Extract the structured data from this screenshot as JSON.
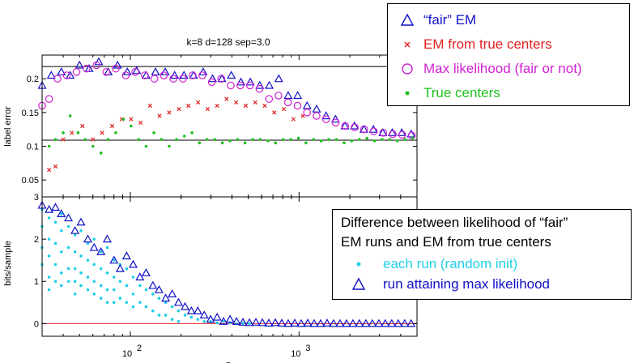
{
  "chart_data": [
    {
      "type": "scatter",
      "title": "k=8 d=128 sep=3.0",
      "xlabel": "",
      "ylabel": "label error",
      "xscale": "log",
      "xlim": [
        30,
        5000
      ],
      "ylim": [
        0.025,
        0.235
      ],
      "yticks": [
        "0.05",
        "0.1",
        "0.15",
        "0.2"
      ],
      "reference_lines_y": [
        0.218,
        0.109
      ],
      "legend_placement": "top-right",
      "series": [
        {
          "name": "“fair” EM",
          "marker": "triangle",
          "color": "#1010c8",
          "x": [
            30,
            34,
            39,
            44,
            50,
            57,
            65,
            74,
            84,
            96,
            109,
            124,
            141,
            161,
            183,
            208,
            237,
            270,
            307,
            349,
            397,
            452,
            514,
            585,
            666,
            758,
            862,
            981,
            1116,
            1270,
            1445,
            1644,
            1871,
            2129,
            2422,
            2756,
            3136,
            3568,
            4060,
            4620
          ],
          "y": [
            0.19,
            0.205,
            0.21,
            0.205,
            0.22,
            0.215,
            0.225,
            0.21,
            0.22,
            0.21,
            0.212,
            0.205,
            0.21,
            0.21,
            0.205,
            0.205,
            0.205,
            0.21,
            0.2,
            0.2,
            0.205,
            0.195,
            0.195,
            0.19,
            0.19,
            0.2,
            0.175,
            0.175,
            0.16,
            0.155,
            0.145,
            0.14,
            0.13,
            0.13,
            0.125,
            0.125,
            0.12,
            0.12,
            0.12,
            0.118
          ]
        },
        {
          "name": "EM from true centers",
          "marker": "x",
          "color": "#e02020",
          "x": [
            33,
            36,
            40,
            45,
            52,
            60,
            68,
            78,
            89,
            101,
            115,
            131,
            149,
            170,
            194,
            221,
            252,
            287,
            327,
            372,
            424,
            483,
            550,
            626,
            713,
            812,
            925,
            1053
          ],
          "y": [
            0.065,
            0.07,
            0.11,
            0.12,
            0.13,
            0.11,
            0.12,
            0.13,
            0.14,
            0.14,
            0.135,
            0.16,
            0.145,
            0.15,
            0.155,
            0.16,
            0.165,
            0.155,
            0.16,
            0.17,
            0.165,
            0.16,
            0.165,
            0.16,
            0.15,
            0.155,
            0.14,
            0.145
          ]
        },
        {
          "name": "Max likelihood (fair or not)",
          "marker": "circle",
          "color": "#d020d0",
          "x": [
            30,
            33,
            37,
            42,
            48,
            55,
            63,
            72,
            82,
            94,
            107,
            122,
            139,
            158,
            180,
            205,
            234,
            267,
            304,
            346,
            394,
            449,
            512,
            583,
            664,
            756,
            860,
            979,
            1115,
            1270,
            1446,
            1647,
            1876,
            2136,
            2432,
            2770,
            3154,
            3592,
            4090,
            4657
          ],
          "y": [
            0.16,
            0.17,
            0.2,
            0.205,
            0.21,
            0.215,
            0.22,
            0.21,
            0.215,
            0.205,
            0.21,
            0.205,
            0.2,
            0.205,
            0.2,
            0.2,
            0.205,
            0.205,
            0.195,
            0.2,
            0.19,
            0.19,
            0.19,
            0.185,
            0.17,
            0.175,
            0.165,
            0.16,
            0.15,
            0.145,
            0.14,
            0.135,
            0.13,
            0.128,
            0.125,
            0.122,
            0.12,
            0.118,
            0.117,
            0.116
          ]
        },
        {
          "name": "True centers",
          "marker": "dot",
          "color": "#20c020",
          "x": [
            33,
            36,
            40,
            44,
            49,
            54,
            60,
            67,
            74,
            82,
            91,
            101,
            112,
            124,
            138,
            153,
            170,
            188,
            209,
            232,
            257,
            285,
            316,
            351,
            389,
            432,
            479,
            531,
            589,
            654,
            725,
            805,
            893,
            991,
            1099,
            1219,
            1353,
            1501,
            1665,
            1848,
            2050,
            2275,
            2524,
            2800,
            3107,
            3447,
            3825,
            4244,
            4709
          ],
          "y": [
            0.1,
            0.11,
            0.12,
            0.145,
            0.12,
            0.11,
            0.1,
            0.09,
            0.11,
            0.12,
            0.14,
            0.13,
            0.11,
            0.1,
            0.12,
            0.11,
            0.1,
            0.11,
            0.115,
            0.12,
            0.105,
            0.11,
            0.11,
            0.105,
            0.108,
            0.11,
            0.105,
            0.11,
            0.11,
            0.108,
            0.105,
            0.11,
            0.11,
            0.112,
            0.105,
            0.11,
            0.108,
            0.11,
            0.11,
            0.105,
            0.108,
            0.11,
            0.112,
            0.108,
            0.11,
            0.11,
            0.108,
            0.11,
            0.112
          ]
        }
      ]
    },
    {
      "type": "scatter",
      "title": "",
      "xlabel": "n",
      "ylabel": "bits/sample",
      "xscale": "log",
      "xlim": [
        30,
        5000
      ],
      "ylim": [
        -0.3,
        3.0
      ],
      "yticks": [
        "0",
        "1",
        "2",
        "3"
      ],
      "xticks": [
        {
          "value": 100,
          "base": "10",
          "exp": "2"
        },
        {
          "value": 1000,
          "base": "10",
          "exp": "3"
        }
      ],
      "reference_lines_y": [
        0
      ],
      "legend_title": [
        "Difference between likelihood of “fair”",
        "EM runs and EM from true centers"
      ],
      "legend_placement": "bottom-right",
      "series": [
        {
          "name": "each run (random init)",
          "marker": "dot",
          "color": "#20d0e8",
          "x": [
            30,
            30,
            30,
            30,
            33,
            33,
            33,
            33,
            33,
            36,
            36,
            36,
            36,
            39,
            39,
            39,
            39,
            39,
            43,
            43,
            43,
            43,
            47,
            47,
            47,
            47,
            47,
            51,
            51,
            51,
            51,
            56,
            56,
            56,
            56,
            61,
            61,
            61,
            61,
            67,
            67,
            67,
            67,
            73,
            73,
            73,
            73,
            80,
            80,
            80,
            80,
            87,
            87,
            87,
            95,
            95,
            95,
            104,
            104,
            104,
            114,
            114,
            124,
            124,
            136,
            136,
            148,
            148,
            162,
            162,
            177,
            177,
            193,
            193,
            211,
            230,
            251,
            274,
            299,
            327,
            357,
            390,
            426,
            465,
            508
          ],
          "y": [
            2.7,
            2.3,
            1.8,
            1.4,
            2.5,
            2.0,
            1.6,
            1.1,
            0.8,
            2.4,
            1.9,
            1.4,
            1.0,
            2.6,
            2.2,
            1.7,
            1.2,
            0.9,
            2.3,
            1.8,
            1.3,
            1.0,
            2.1,
            1.7,
            1.3,
            1.0,
            0.7,
            2.2,
            1.6,
            1.2,
            0.9,
            1.9,
            1.5,
            1.1,
            0.8,
            2.0,
            1.4,
            1.0,
            0.7,
            1.7,
            1.3,
            0.9,
            0.6,
            1.8,
            1.2,
            0.8,
            0.5,
            1.5,
            1.1,
            0.8,
            0.5,
            1.4,
            1.0,
            0.6,
            1.3,
            0.9,
            0.5,
            1.1,
            0.7,
            0.4,
            0.9,
            0.5,
            0.8,
            0.4,
            0.7,
            0.3,
            0.6,
            0.2,
            0.5,
            0.2,
            0.4,
            0.1,
            0.3,
            0.05,
            0.2,
            0.15,
            0.1,
            0.05,
            0.05,
            0.02,
            0.05,
            0.02,
            0.0,
            0.01,
            0.0
          ]
        },
        {
          "name": "run attaining max likelihood",
          "marker": "triangle",
          "color": "#1010c8",
          "x": [
            30,
            33,
            36,
            39,
            43,
            47,
            51,
            56,
            61,
            67,
            73,
            80,
            87,
            95,
            104,
            114,
            124,
            136,
            148,
            162,
            177,
            193,
            211,
            230,
            251,
            274,
            299,
            327,
            357,
            390,
            426,
            465,
            508,
            555,
            606,
            662,
            723,
            790,
            863,
            943,
            1030,
            1125,
            1229,
            1342,
            1466,
            1601,
            1749,
            1910,
            2086,
            2279,
            2489,
            2719,
            2970,
            3244,
            3543,
            3870,
            4227,
            4617
          ],
          "y": [
            2.8,
            2.7,
            2.75,
            2.6,
            2.5,
            2.2,
            2.4,
            2.0,
            1.8,
            1.7,
            2.0,
            1.5,
            1.3,
            1.6,
            1.4,
            1.1,
            1.2,
            0.9,
            0.8,
            0.6,
            0.7,
            0.5,
            0.4,
            0.3,
            0.3,
            0.2,
            0.1,
            0.15,
            0.05,
            0.1,
            0.05,
            0.03,
            0.02,
            0.03,
            0.02,
            0.01,
            0.02,
            0.01,
            0.0,
            0.01,
            0.0,
            0.01,
            0.0,
            0.0,
            0.01,
            0.0,
            0.0,
            0.0,
            0.0,
            0.0,
            0.0,
            0.0,
            0.0,
            0.0,
            0.0,
            0.0,
            0.0,
            0.0
          ]
        }
      ]
    }
  ]
}
